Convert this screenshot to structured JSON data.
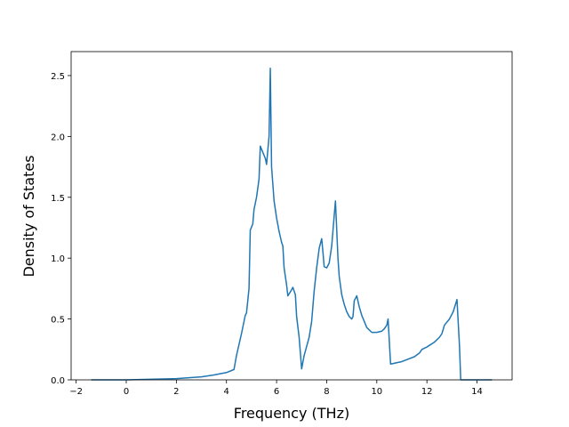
{
  "chart_data": {
    "type": "line",
    "xlabel": "Frequency (THz)",
    "ylabel": "Density of States",
    "x": [
      -1.4,
      0,
      2,
      3,
      3.5,
      4,
      4.3,
      4.4,
      4.6,
      4.75,
      4.8,
      4.9,
      4.95,
      5.05,
      5.1,
      5.2,
      5.3,
      5.35,
      5.55,
      5.6,
      5.7,
      5.75,
      5.8,
      5.9,
      6.0,
      6.1,
      6.2,
      6.25,
      6.3,
      6.4,
      6.45,
      6.6,
      6.65,
      6.75,
      6.8,
      6.9,
      7.0,
      7.1,
      7.3,
      7.4,
      7.5,
      7.6,
      7.7,
      7.8,
      7.85,
      7.9,
      8.0,
      8.1,
      8.2,
      8.3,
      8.35,
      8.45,
      8.5,
      8.6,
      8.7,
      8.8,
      8.9,
      9.0,
      9.05,
      9.1,
      9.2,
      9.3,
      9.4,
      9.5,
      9.6,
      9.8,
      10.0,
      10.2,
      10.3,
      10.4,
      10.45,
      10.55,
      11.0,
      11.5,
      11.7,
      11.8,
      12.0,
      12.3,
      12.5,
      12.6,
      12.7,
      12.9,
      13.05,
      13.2,
      13.3,
      13.35,
      14.6
    ],
    "series": [
      {
        "color": "#1f77b4",
        "values": [
          0,
          0,
          0.01,
          0.025,
          0.04,
          0.06,
          0.085,
          0.2,
          0.38,
          0.53,
          0.55,
          0.75,
          1.23,
          1.28,
          1.4,
          1.5,
          1.65,
          1.92,
          1.82,
          1.77,
          2.0,
          2.56,
          1.75,
          1.47,
          1.33,
          1.22,
          1.13,
          1.1,
          0.92,
          0.78,
          0.69,
          0.74,
          0.76,
          0.7,
          0.52,
          0.35,
          0.09,
          0.2,
          0.35,
          0.48,
          0.73,
          0.92,
          1.08,
          1.16,
          1.05,
          0.93,
          0.92,
          0.96,
          1.1,
          1.35,
          1.47,
          1.0,
          0.85,
          0.7,
          0.62,
          0.56,
          0.52,
          0.5,
          0.52,
          0.65,
          0.69,
          0.6,
          0.53,
          0.48,
          0.43,
          0.39,
          0.39,
          0.4,
          0.42,
          0.45,
          0.5,
          0.13,
          0.15,
          0.19,
          0.22,
          0.25,
          0.27,
          0.31,
          0.35,
          0.38,
          0.45,
          0.5,
          0.56,
          0.66,
          0.28,
          0,
          0
        ]
      }
    ],
    "xlim": [
      -2.2,
      15.4
    ],
    "ylim": [
      0,
      2.697
    ],
    "xticks": [
      {
        "value": -2,
        "label": "−2"
      },
      0,
      2,
      4,
      6,
      8,
      10,
      12,
      14
    ],
    "yticks": [
      {
        "value": 0,
        "label": "0.0"
      },
      {
        "value": 0.5,
        "label": "0.5"
      },
      {
        "value": 1,
        "label": "1.0"
      },
      {
        "value": 1.5,
        "label": "1.5"
      },
      {
        "value": 2,
        "label": "2.0"
      },
      {
        "value": 2.5,
        "label": "2.5"
      }
    ]
  }
}
